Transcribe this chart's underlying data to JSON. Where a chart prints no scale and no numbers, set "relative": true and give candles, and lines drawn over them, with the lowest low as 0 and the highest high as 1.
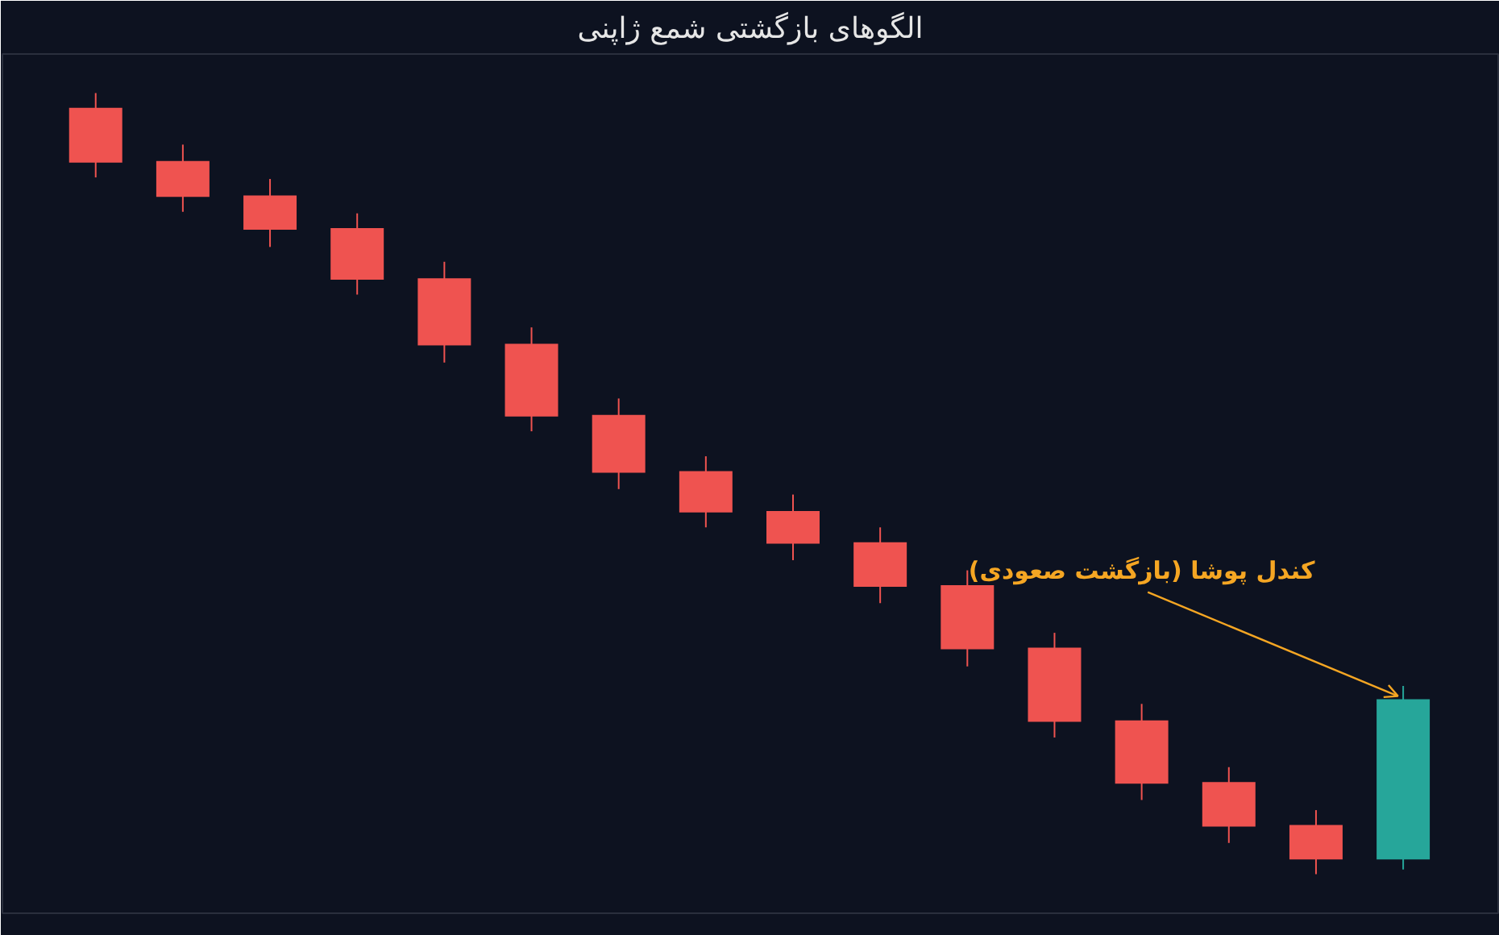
{
  "chart_data": {
    "type": "candlestick",
    "title": "الگوهای بازگشتی شمع ژاپنی",
    "relative": true,
    "categories": [
      null,
      null,
      null,
      null,
      null,
      null,
      null,
      null,
      null,
      null,
      null,
      null,
      null,
      null,
      null,
      null
    ],
    "ohlc": [
      [
        0.981,
        1.0,
        0.892,
        0.911
      ],
      [
        0.913,
        0.934,
        0.848,
        0.867
      ],
      [
        0.869,
        0.89,
        0.803,
        0.825
      ],
      [
        0.827,
        0.846,
        0.742,
        0.761
      ],
      [
        0.763,
        0.784,
        0.655,
        0.677
      ],
      [
        0.679,
        0.7,
        0.567,
        0.586
      ],
      [
        0.588,
        0.609,
        0.493,
        0.514
      ],
      [
        0.516,
        0.535,
        0.444,
        0.463
      ],
      [
        0.465,
        0.486,
        0.402,
        0.423
      ],
      [
        0.425,
        0.444,
        0.347,
        0.368
      ],
      [
        0.37,
        0.389,
        0.266,
        0.288
      ],
      [
        0.29,
        0.309,
        0.175,
        0.195
      ],
      [
        0.197,
        0.218,
        0.095,
        0.116
      ],
      [
        0.118,
        0.137,
        0.04,
        0.061
      ],
      [
        0.063,
        0.082,
        0.0,
        0.019
      ],
      [
        0.019,
        0.241,
        0.006,
        0.224
      ]
    ],
    "colors": [
      "#ef5350",
      "#ef5350",
      "#ef5350",
      "#ef5350",
      "#ef5350",
      "#ef5350",
      "#ef5350",
      "#ef5350",
      "#ef5350",
      "#ef5350",
      "#ef5350",
      "#ef5350",
      "#ef5350",
      "#ef5350",
      "#ef5350",
      "#26a69a"
    ],
    "annotations": [
      "کندل پوشا (بازگشت صعودی)"
    ]
  }
}
